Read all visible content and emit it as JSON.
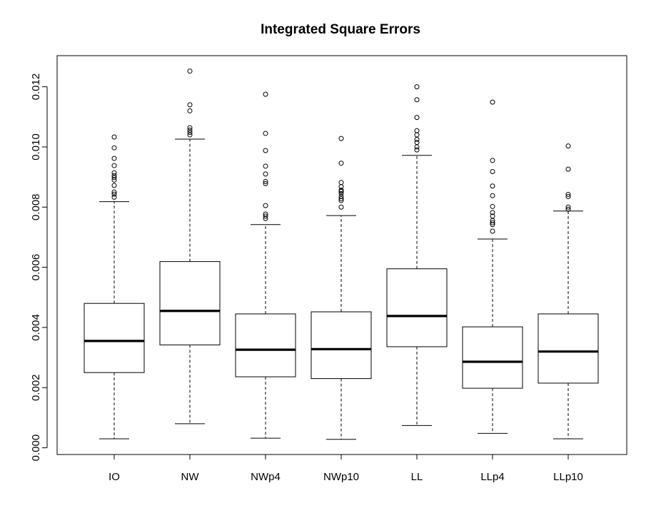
{
  "chart_data": {
    "type": "boxplot",
    "title": "Integrated Square Errors",
    "xlabel": "",
    "ylabel": "",
    "ylim": [
      -0.00025,
      0.0131
    ],
    "yticks": [
      0.0,
      0.002,
      0.004,
      0.006,
      0.008,
      0.01,
      0.012
    ],
    "ytick_labels": [
      "0.000",
      "0.002",
      "0.004",
      "0.006",
      "0.008",
      "0.010",
      "0.012"
    ],
    "grid": false,
    "legend": "none",
    "categories": [
      "IO",
      "NW",
      "NWp4",
      "NWp10",
      "LL",
      "LLp4",
      "LLp10"
    ],
    "boxes": [
      {
        "category": "IO",
        "whisker_low": 0.0003,
        "q1": 0.0025,
        "median": 0.00355,
        "q3": 0.0048,
        "whisker_high": 0.00818,
        "outliers": [
          0.01033,
          0.00997,
          0.00962,
          0.00938,
          0.00914,
          0.00905,
          0.00898,
          0.0089,
          0.00872,
          0.0085,
          0.00843,
          0.00833
        ]
      },
      {
        "category": "NW",
        "whisker_low": 0.0008,
        "q1": 0.00342,
        "median": 0.00455,
        "q3": 0.00619,
        "whisker_high": 0.01026,
        "outliers": [
          0.01252,
          0.0114,
          0.0112,
          0.01064,
          0.01056,
          0.01048,
          0.0104
        ]
      },
      {
        "category": "NWp4",
        "whisker_low": 0.00032,
        "q1": 0.00236,
        "median": 0.00326,
        "q3": 0.00445,
        "whisker_high": 0.00742,
        "outliers": [
          0.01175,
          0.01045,
          0.00988,
          0.00936,
          0.0091,
          0.00885,
          0.00878,
          0.00805,
          0.00777,
          0.0077,
          0.00762
        ]
      },
      {
        "category": "NWp10",
        "whisker_low": 0.00028,
        "q1": 0.0023,
        "median": 0.00328,
        "q3": 0.00452,
        "whisker_high": 0.00772,
        "outliers": [
          0.01028,
          0.00946,
          0.00882,
          0.00868,
          0.00856,
          0.00852,
          0.00845,
          0.00835,
          0.00828,
          0.00822,
          0.008
        ]
      },
      {
        "category": "LL",
        "whisker_low": 0.00074,
        "q1": 0.00336,
        "median": 0.00438,
        "q3": 0.00595,
        "whisker_high": 0.00972,
        "outliers": [
          0.012,
          0.01157,
          0.01098,
          0.01054,
          0.0104,
          0.01025,
          0.01015,
          0.01,
          0.0099
        ]
      },
      {
        "category": "LLp4",
        "whisker_low": 0.00048,
        "q1": 0.00198,
        "median": 0.00286,
        "q3": 0.00402,
        "whisker_high": 0.00694,
        "outliers": [
          0.01149,
          0.00955,
          0.00918,
          0.0087,
          0.00838,
          0.00802,
          0.00782,
          0.0077,
          0.00755,
          0.00748,
          0.00742,
          0.0072
        ]
      },
      {
        "category": "LLp10",
        "whisker_low": 0.0003,
        "q1": 0.00215,
        "median": 0.0032,
        "q3": 0.00445,
        "whisker_high": 0.00787,
        "outliers": [
          0.01003,
          0.00926,
          0.00842,
          0.00835,
          0.008,
          0.00793
        ]
      }
    ]
  }
}
